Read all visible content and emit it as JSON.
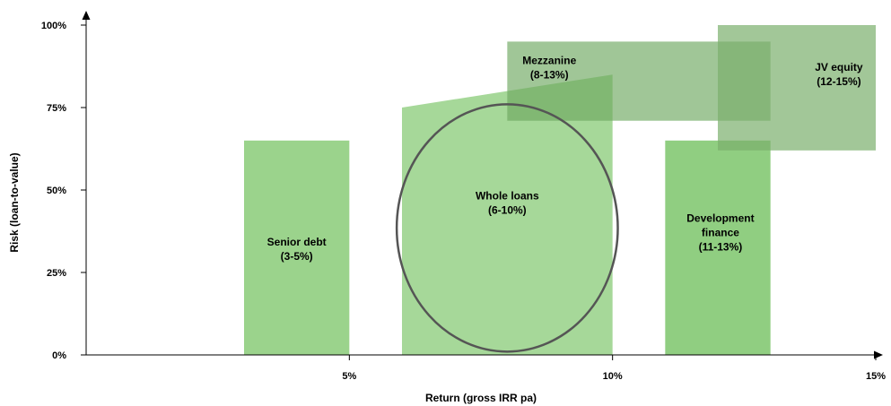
{
  "chart_data": {
    "type": "area",
    "xlabel": "Return (gross IRR pa)",
    "ylabel": "Risk (loan-to-value)",
    "xlim": [
      0,
      15
    ],
    "ylim": [
      0,
      100
    ],
    "x_ticks": [
      {
        "value": 5,
        "label": "5%"
      },
      {
        "value": 10,
        "label": "10%"
      },
      {
        "value": 15,
        "label": "15%"
      }
    ],
    "y_ticks": [
      {
        "value": 0,
        "label": "0%"
      },
      {
        "value": 25,
        "label": "25%"
      },
      {
        "value": 50,
        "label": "50%"
      },
      {
        "value": 75,
        "label": "75%"
      },
      {
        "value": 100,
        "label": "100%"
      }
    ],
    "regions": [
      {
        "id": "senior-debt",
        "lines": [
          "Senior debt",
          "(3-5%)"
        ],
        "shape": "rect",
        "x_range": [
          3,
          5
        ],
        "y_range": [
          0,
          65
        ],
        "color": "#90CE7F",
        "opacity": 0.9,
        "label_at": [
          4,
          31
        ]
      },
      {
        "id": "whole-loans",
        "lines": [
          "Whole loans",
          "(6-10%)"
        ],
        "shape": "polygon",
        "points": [
          [
            6,
            0
          ],
          [
            6,
            75
          ],
          [
            10,
            85
          ],
          [
            10,
            0
          ]
        ],
        "color": "#90CE7F",
        "opacity": 0.8,
        "label_at": [
          8,
          45
        ]
      },
      {
        "id": "mezzanine",
        "lines": [
          "Mezzanine",
          "(8-13%)"
        ],
        "shape": "rect",
        "x_range": [
          8,
          13
        ],
        "y_range": [
          71,
          95
        ],
        "color": "#6DA860",
        "opacity": 0.65,
        "label_at": [
          8.8,
          86
        ]
      },
      {
        "id": "development-finance",
        "lines": [
          "Development",
          "finance",
          "(11-13%)"
        ],
        "shape": "rect",
        "x_range": [
          11,
          13
        ],
        "y_range": [
          0,
          65
        ],
        "color": "#7CC66B",
        "opacity": 0.85,
        "label_at": [
          12.05,
          36
        ]
      },
      {
        "id": "jv-equity",
        "lines": [
          "JV equity",
          "(12-15%)"
        ],
        "shape": "rect",
        "x_range": [
          12,
          15
        ],
        "y_range": [
          62,
          100
        ],
        "color": "#7BAF6C",
        "opacity": 0.7,
        "label_at": [
          14.3,
          84
        ]
      }
    ],
    "ellipse": {
      "id": "whole-loans-highlight",
      "center": [
        8,
        38.5
      ],
      "radius_x": 2.1,
      "radius_y": 37.5,
      "stroke": "#555555"
    },
    "grid": false,
    "legend": "none"
  }
}
